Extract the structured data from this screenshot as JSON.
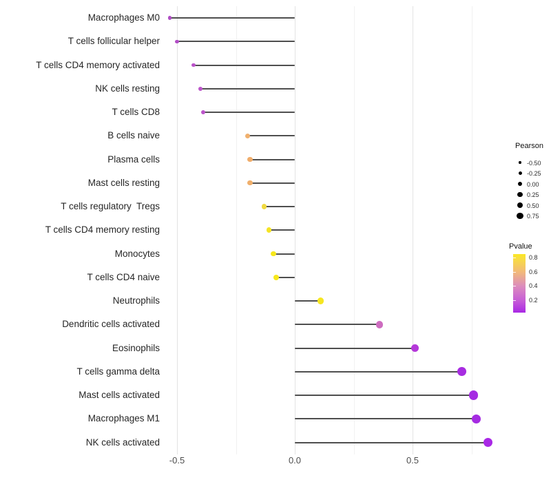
{
  "chart_data": {
    "type": "lollipop",
    "orientation": "horizontal",
    "title": "",
    "xlabel": "",
    "ylabel": "",
    "grid": true,
    "xlim": [
      -0.56,
      0.93
    ],
    "x_tick_labels": [
      "-0.5",
      "0.0",
      "0.5"
    ],
    "x_major_gridlines": [
      -0.5,
      0.0,
      0.5
    ],
    "x_minor_gridlines": [
      -0.25,
      0.25,
      0.75
    ],
    "rows": [
      {
        "label": "Macrophages M0",
        "pearson": -0.53,
        "pvalue": 0.16,
        "color": "#b04cc5"
      },
      {
        "label": "T cells follicular helper",
        "pearson": -0.5,
        "pvalue": 0.18,
        "color": "#b24ec6"
      },
      {
        "label": "T cells CD4 memory activated",
        "pearson": -0.43,
        "pvalue": 0.2,
        "color": "#ba52c9"
      },
      {
        "label": "NK cells resting",
        "pearson": -0.4,
        "pvalue": 0.21,
        "color": "#bc55ca"
      },
      {
        "label": "T cells CD8",
        "pearson": -0.39,
        "pvalue": 0.21,
        "color": "#bc55ca"
      },
      {
        "label": "B cells naive",
        "pearson": -0.2,
        "pvalue": 0.6,
        "color": "#f0b06e"
      },
      {
        "label": "Plasma cells",
        "pearson": -0.19,
        "pvalue": 0.62,
        "color": "#f0ad6b"
      },
      {
        "label": "Mast cells resting",
        "pearson": -0.19,
        "pvalue": 0.61,
        "color": "#f0af6c"
      },
      {
        "label": "T cells regulatory  Tregs",
        "pearson": -0.13,
        "pvalue": 0.76,
        "color": "#f1da41"
      },
      {
        "label": "T cells CD4 memory resting",
        "pearson": -0.11,
        "pvalue": 0.8,
        "color": "#f5e426"
      },
      {
        "label": "Monocytes",
        "pearson": -0.09,
        "pvalue": 0.82,
        "color": "#f7e81c"
      },
      {
        "label": "T cells CD4 naive",
        "pearson": -0.08,
        "pvalue": 0.82,
        "color": "#f7e81c"
      },
      {
        "label": "Neutrophils",
        "pearson": 0.11,
        "pvalue": 0.8,
        "color": "#f6e620"
      },
      {
        "label": "Dendritic cells activated",
        "pearson": 0.36,
        "pvalue": 0.32,
        "color": "#cd6cbf"
      },
      {
        "label": "Eosinophils",
        "pearson": 0.51,
        "pvalue": 0.16,
        "color": "#b438d9"
      },
      {
        "label": "T cells gamma delta",
        "pearson": 0.71,
        "pvalue": 0.07,
        "color": "#a72ce1"
      },
      {
        "label": "Mast cells activated",
        "pearson": 0.76,
        "pvalue": 0.05,
        "color": "#a52be2"
      },
      {
        "label": "Macrophages M1",
        "pearson": 0.77,
        "pvalue": 0.05,
        "color": "#a52be2"
      },
      {
        "label": "NK cells activated",
        "pearson": 0.82,
        "pvalue": 0.03,
        "color": "#a928e6"
      }
    ],
    "legend_size": {
      "title": "Pearson",
      "entries": [
        {
          "label": "-0.50",
          "dia": 3.4
        },
        {
          "label": "-0.25",
          "dia": 5.0
        },
        {
          "label": "0.00",
          "dia": 6.4
        },
        {
          "label": "0.25",
          "dia": 7.4
        },
        {
          "label": "0.50",
          "dia": 8.4
        },
        {
          "label": "0.75",
          "dia": 9.4
        }
      ],
      "dot_color": "#000000"
    },
    "legend_color": {
      "title": "Pvalue",
      "bar_domain_top": 0.85,
      "bar_domain_bottom": 0.025,
      "ticks": [
        {
          "value": 0.8,
          "label": "0.8"
        },
        {
          "value": 0.6,
          "label": "0.6"
        },
        {
          "value": 0.4,
          "label": "0.4"
        },
        {
          "value": 0.2,
          "label": "0.2"
        }
      ],
      "gradient_stops": [
        {
          "pos": 0,
          "color": "#fbe723"
        },
        {
          "pos": 8,
          "color": "#f8dd41"
        },
        {
          "pos": 30,
          "color": "#f2ba78"
        },
        {
          "pos": 55,
          "color": "#dc8cbe"
        },
        {
          "pos": 79,
          "color": "#c75ed6"
        },
        {
          "pos": 100,
          "color": "#a928e4"
        }
      ]
    },
    "style": {
      "major_grid_color": "#e3e3e3",
      "minor_grid_color": "#f1f1f1",
      "stem_color": "#4e4e4e",
      "background": "#ffffff"
    }
  }
}
